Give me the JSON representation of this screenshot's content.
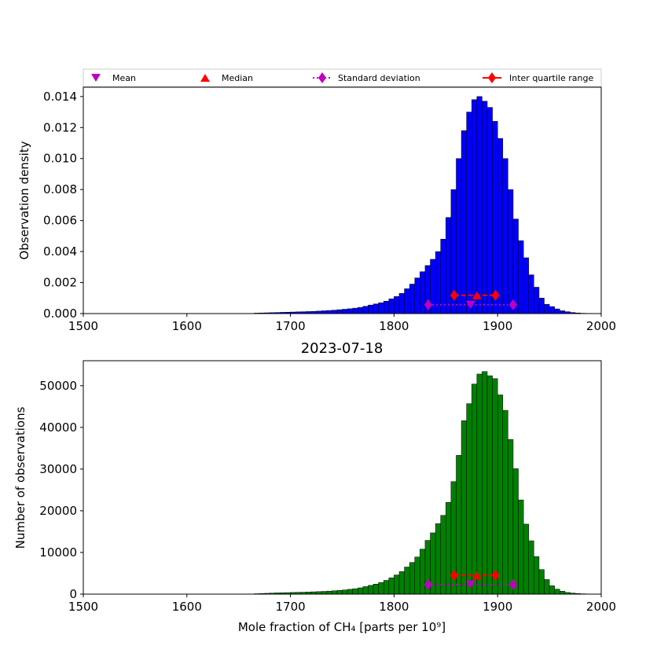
{
  "chart_data": [
    {
      "type": "bar",
      "title": "",
      "xlabel": "",
      "ylabel": "Observation density",
      "xlim": [
        1500,
        2000
      ],
      "ylim": [
        0,
        0.0146
      ],
      "bin_width": 5,
      "xticks": [
        1500,
        1600,
        1700,
        1800,
        1900,
        2000
      ],
      "yticks": [
        0.0,
        0.002,
        0.004,
        0.006,
        0.008,
        0.01,
        0.012,
        0.014
      ],
      "ytick_labels": [
        "0.000",
        "0.002",
        "0.004",
        "0.006",
        "0.008",
        "0.010",
        "0.012",
        "0.014"
      ],
      "bar_color": "#0000ff",
      "bin_starts": [
        1665,
        1670,
        1675,
        1680,
        1685,
        1690,
        1695,
        1700,
        1705,
        1710,
        1715,
        1720,
        1725,
        1730,
        1735,
        1740,
        1745,
        1750,
        1755,
        1760,
        1765,
        1770,
        1775,
        1780,
        1785,
        1790,
        1795,
        1800,
        1805,
        1810,
        1815,
        1820,
        1825,
        1830,
        1835,
        1840,
        1845,
        1850,
        1855,
        1860,
        1865,
        1870,
        1875,
        1880,
        1885,
        1890,
        1895,
        1900,
        1905,
        1910,
        1915,
        1920,
        1925,
        1930,
        1935,
        1940,
        1945,
        1950,
        1955,
        1960,
        1965,
        1970,
        1975,
        1980,
        1985
      ],
      "values": [
        3e-05,
        4e-05,
        5e-05,
        6e-05,
        7e-05,
        8e-05,
        9e-05,
        0.0001,
        0.00011,
        0.00012,
        0.00013,
        0.00014,
        0.00016,
        0.00018,
        0.0002,
        0.00022,
        0.00025,
        0.00028,
        0.00031,
        0.00035,
        0.0004,
        0.00047,
        0.00055,
        0.00062,
        0.0007,
        0.0008,
        0.00095,
        0.0011,
        0.0013,
        0.0016,
        0.0019,
        0.0023,
        0.0027,
        0.0031,
        0.0035,
        0.004,
        0.0048,
        0.0062,
        0.008,
        0.01,
        0.0118,
        0.013,
        0.0138,
        0.014,
        0.0137,
        0.0133,
        0.0124,
        0.0113,
        0.01,
        0.008,
        0.0061,
        0.0047,
        0.0036,
        0.0025,
        0.0017,
        0.001,
        0.0006,
        0.00045,
        0.0003,
        0.00018,
        0.00012,
        7e-05,
        4e-05,
        2e-05,
        1e-05
      ],
      "markers": {
        "mean": {
          "x": 1874,
          "y": 0.00057
        },
        "median": {
          "x": 1880,
          "y": 0.00118
        },
        "std": {
          "x": [
            1833,
            1915
          ],
          "y": 0.00057
        },
        "iqr": {
          "x": [
            1858,
            1898
          ],
          "y": 0.00118
        }
      }
    },
    {
      "type": "bar",
      "title": "2023-07-18",
      "xlabel": "Mole fraction of CH₄ [parts per 10⁹]",
      "ylabel": "Number of observations",
      "xlim": [
        1500,
        2000
      ],
      "ylim": [
        0,
        56000
      ],
      "bin_width": 5,
      "xticks": [
        1500,
        1600,
        1700,
        1800,
        1900,
        2000
      ],
      "yticks": [
        0,
        10000,
        20000,
        30000,
        40000,
        50000
      ],
      "ytick_labels": [
        "0",
        "10000",
        "20000",
        "30000",
        "40000",
        "50000"
      ],
      "bar_color": "#008000",
      "bin_starts": [
        1665,
        1670,
        1675,
        1680,
        1685,
        1690,
        1695,
        1700,
        1705,
        1710,
        1715,
        1720,
        1725,
        1730,
        1735,
        1740,
        1745,
        1750,
        1755,
        1760,
        1765,
        1770,
        1775,
        1780,
        1785,
        1790,
        1795,
        1800,
        1805,
        1810,
        1815,
        1820,
        1825,
        1830,
        1835,
        1840,
        1845,
        1850,
        1855,
        1860,
        1865,
        1870,
        1875,
        1880,
        1885,
        1890,
        1895,
        1900,
        1905,
        1910,
        1915,
        1920,
        1925,
        1930,
        1935,
        1940,
        1945,
        1950,
        1955,
        1960,
        1965,
        1970,
        1975,
        1980,
        1985
      ],
      "values": [
        100,
        150,
        200,
        250,
        300,
        330,
        360,
        400,
        430,
        460,
        500,
        550,
        600,
        650,
        720,
        800,
        900,
        1000,
        1150,
        1300,
        1500,
        1800,
        2100,
        2400,
        2800,
        3300,
        3900,
        4600,
        5400,
        6500,
        7600,
        8900,
        10800,
        12900,
        14700,
        16900,
        18900,
        22000,
        27000,
        33300,
        41600,
        45700,
        50400,
        52800,
        53400,
        52400,
        51700,
        47800,
        44100,
        37100,
        30100,
        22600,
        16800,
        12800,
        9000,
        5900,
        3500,
        2000,
        1200,
        700,
        400,
        250,
        150,
        80,
        40
      ],
      "markers": {
        "mean": {
          "x": 1874,
          "y": 2300
        },
        "median": {
          "x": 1880,
          "y": 4500
        },
        "std": {
          "x": [
            1833,
            1915
          ],
          "y": 2300
        },
        "iqr": {
          "x": [
            1858,
            1898
          ],
          "y": 4500
        }
      }
    }
  ],
  "legend": {
    "mean": "Mean",
    "median": "Median",
    "std": "Standard deviation",
    "iqr": "Inter quartile range",
    "colors": {
      "mean": "#bf00bf",
      "median": "#ff0000",
      "std": "#bf00bf",
      "iqr": "#ff0000"
    }
  }
}
